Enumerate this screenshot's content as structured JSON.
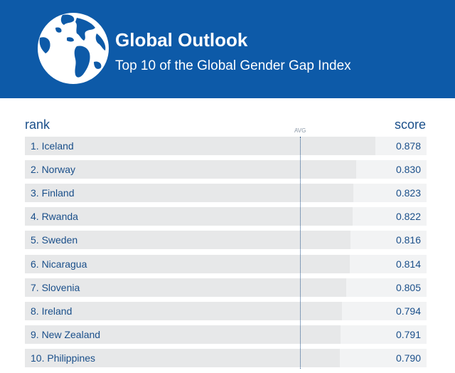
{
  "header": {
    "title": "Global Outlook",
    "subtitle": "Top 10 of the Global Gender Gap Index",
    "icon": "globe-icon",
    "background_color": "#0d5aa8"
  },
  "table": {
    "rank_header": "rank",
    "score_header": "score",
    "avg_label": "AVG"
  },
  "colors": {
    "bar": "#e7e8e9",
    "row_background": "#f2f3f4",
    "text": "#1a4f8a",
    "avg_line": "#1f4f86"
  },
  "chart_data": {
    "type": "bar",
    "orientation": "horizontal",
    "categories": [
      "1. Iceland",
      "2. Norway",
      "3. Finland",
      "4. Rwanda",
      "5. Sweden",
      "6. Nicaragua",
      "7. Slovenia",
      "8. Ireland",
      "9. New Zealand",
      "10. Philippines"
    ],
    "values": [
      0.878,
      0.83,
      0.823,
      0.822,
      0.816,
      0.814,
      0.805,
      0.794,
      0.791,
      0.79
    ],
    "value_labels": [
      "0.878",
      "0.830",
      "0.823",
      "0.822",
      "0.816",
      "0.814",
      "0.805",
      "0.794",
      "0.791",
      "0.790"
    ],
    "average": 0.69,
    "xlim": [
      0,
      0.9
    ],
    "grid": false
  }
}
